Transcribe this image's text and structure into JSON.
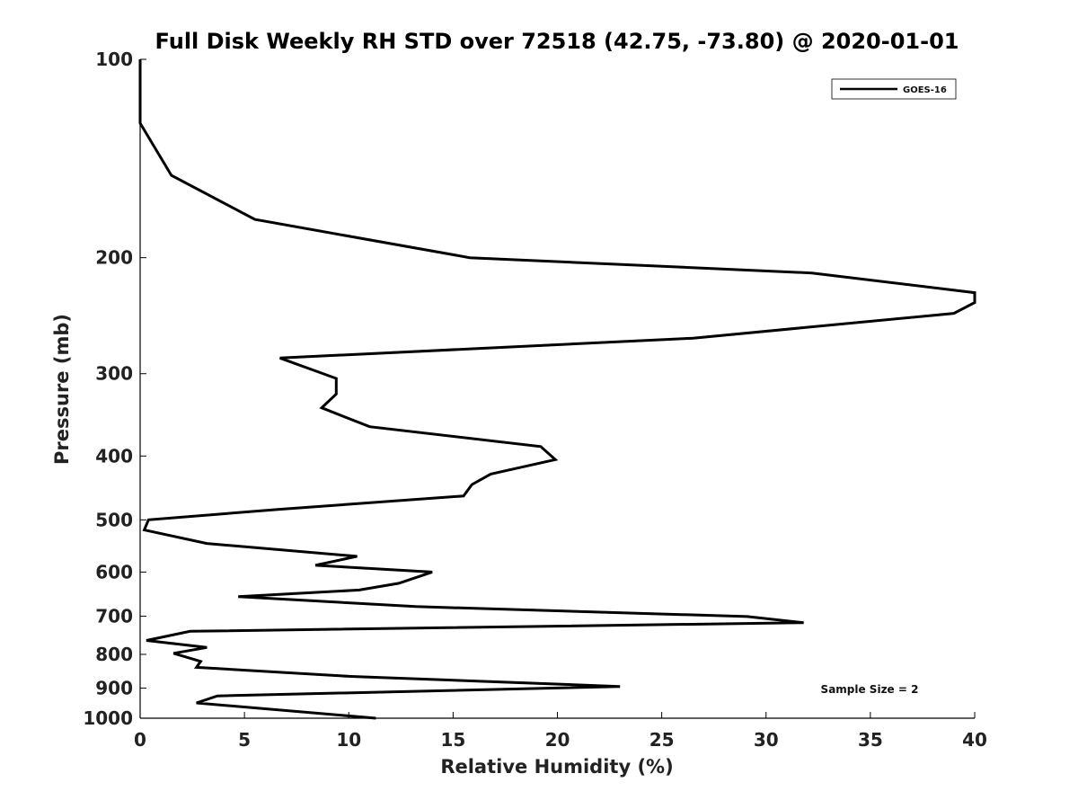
{
  "chart_data": {
    "type": "line",
    "title": "Full Disk Weekly RH STD over 72518 (42.75, -73.80) @ 2020-01-01",
    "xlabel": "Relative Humidity (%)",
    "ylabel": "Pressure (mb)",
    "xlim": [
      0,
      40
    ],
    "ylim": [
      100,
      1000
    ],
    "yscale": "log",
    "y_inverted": true,
    "grid": false,
    "legend_position": "top-right",
    "xticks": [
      0,
      5,
      10,
      15,
      20,
      25,
      30,
      35,
      40
    ],
    "xtick_labels": [
      "0",
      "5",
      "10",
      "15",
      "20",
      "25",
      "30",
      "35",
      "40"
    ],
    "yticks": [
      100,
      200,
      300,
      400,
      500,
      600,
      700,
      800,
      900,
      1000
    ],
    "ytick_labels": [
      "100",
      "200",
      "300",
      "400",
      "500",
      "600",
      "700",
      "800",
      "900",
      "1000"
    ],
    "series": [
      {
        "name": "GOES-16",
        "color": "#000000",
        "points": [
          [
            0.0,
            100
          ],
          [
            0.0,
            125
          ],
          [
            1.5,
            150
          ],
          [
            5.5,
            175
          ],
          [
            15.8,
            200
          ],
          [
            32.2,
            211
          ],
          [
            40.0,
            226
          ],
          [
            40.0,
            234
          ],
          [
            39.0,
            243
          ],
          [
            26.5,
            265
          ],
          [
            6.7,
            284
          ],
          [
            9.4,
            305
          ],
          [
            9.4,
            322
          ],
          [
            8.7,
            338
          ],
          [
            11.0,
            361
          ],
          [
            19.2,
            387
          ],
          [
            19.9,
            405
          ],
          [
            16.8,
            426
          ],
          [
            15.9,
            442
          ],
          [
            15.5,
            460
          ],
          [
            6.6,
            482
          ],
          [
            0.4,
            500
          ],
          [
            0.2,
            518
          ],
          [
            3.2,
            543
          ],
          [
            10.4,
            568
          ],
          [
            8.4,
            586
          ],
          [
            14.0,
            600
          ],
          [
            12.4,
            624
          ],
          [
            10.5,
            639
          ],
          [
            4.7,
            654
          ],
          [
            13.2,
            677
          ],
          [
            29.1,
            701
          ],
          [
            31.8,
            716
          ],
          [
            2.4,
            738
          ],
          [
            0.3,
            762
          ],
          [
            3.2,
            781
          ],
          [
            1.6,
            797
          ],
          [
            2.9,
            820
          ],
          [
            2.7,
            837
          ],
          [
            10.1,
            864
          ],
          [
            23.0,
            895
          ],
          [
            3.7,
            925
          ],
          [
            2.7,
            948
          ],
          [
            11.3,
            1000
          ]
        ]
      }
    ],
    "annotations": [
      "Sample Size = 2"
    ]
  }
}
